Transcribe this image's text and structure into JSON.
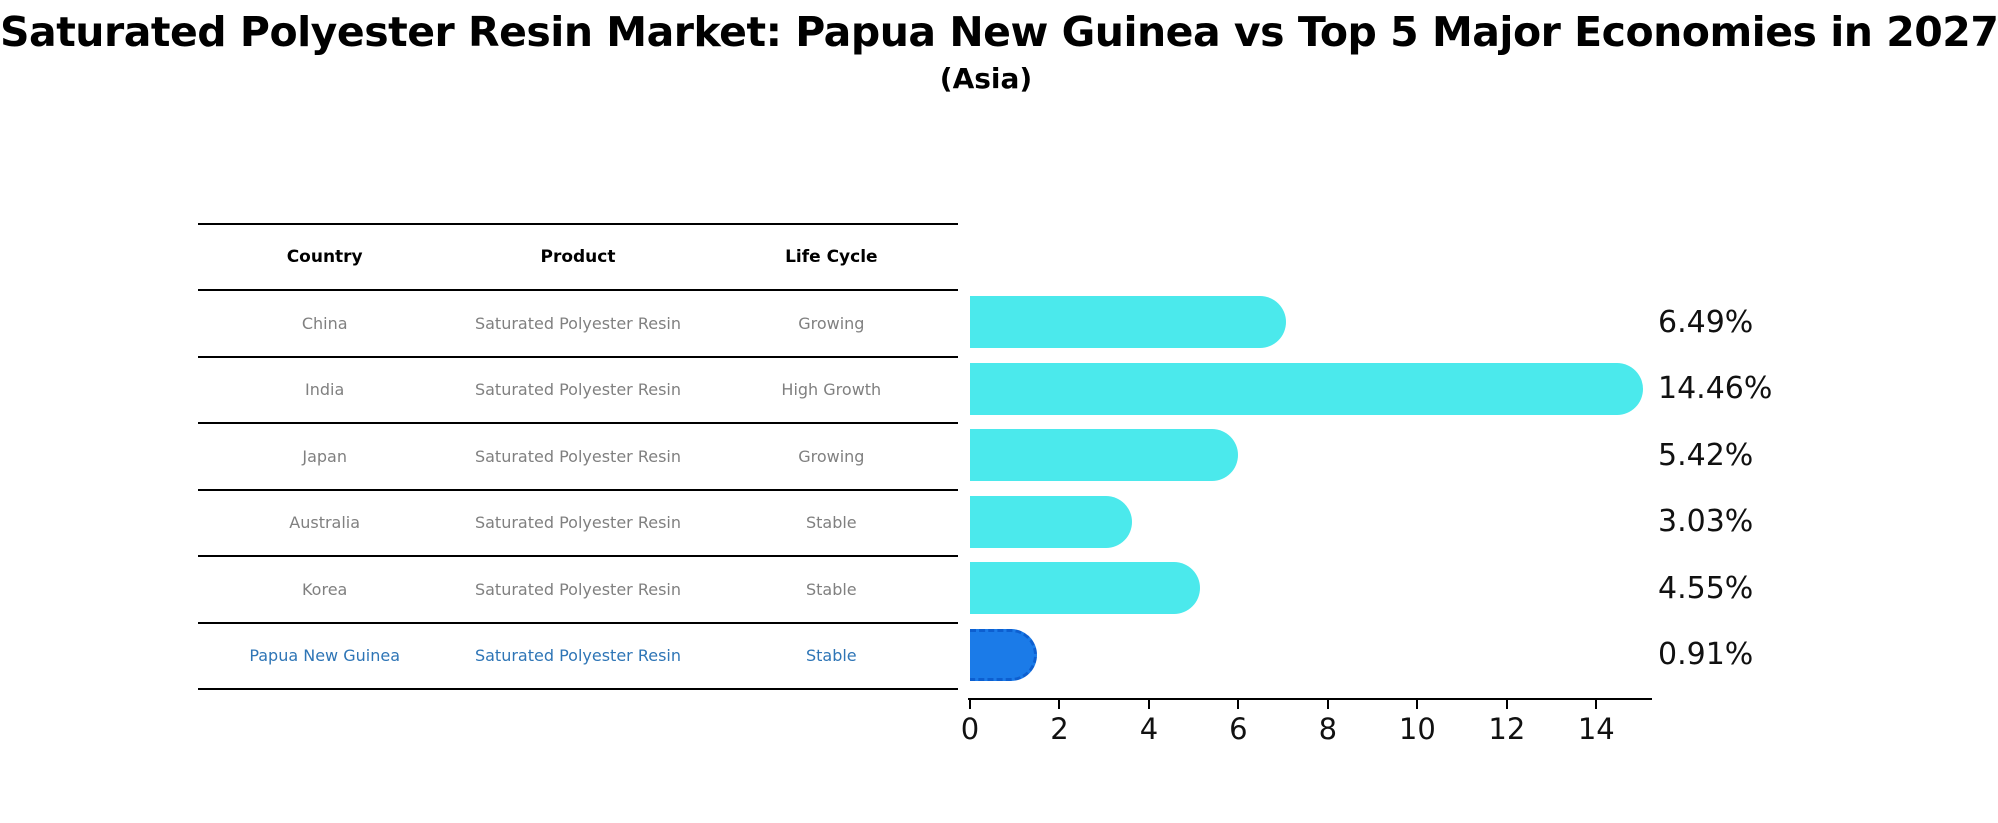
{
  "title": "Saturated Polyester Resin Market: Papua New Guinea vs Top 5 Major Economies in 2027",
  "subtitle": "(Asia)",
  "table": {
    "headers": [
      "Country",
      "Product",
      "Life Cycle"
    ],
    "rows": [
      {
        "country": "China",
        "product": "Saturated Polyester Resin",
        "life_cycle": "Growing",
        "highlight": false
      },
      {
        "country": "India",
        "product": "Saturated Polyester Resin",
        "life_cycle": "High Growth",
        "highlight": false
      },
      {
        "country": "Japan",
        "product": "Saturated Polyester Resin",
        "life_cycle": "Growing",
        "highlight": false
      },
      {
        "country": "Australia",
        "product": "Saturated Polyester Resin",
        "life_cycle": "Stable",
        "highlight": false
      },
      {
        "country": "Korea",
        "product": "Saturated Polyester Resin",
        "life_cycle": "Stable",
        "highlight": false
      },
      {
        "country": "Papua New Guinea",
        "product": "Saturated Polyester Resin",
        "life_cycle": "Stable",
        "highlight": true
      }
    ]
  },
  "chart_data": {
    "type": "bar",
    "orientation": "horizontal",
    "title": "Saturated Polyester Resin Market: Papua New Guinea vs Top 5 Major Economies in 2027 (Asia)",
    "categories": [
      "China",
      "India",
      "Japan",
      "Australia",
      "Korea",
      "Papua New Guinea"
    ],
    "values": [
      6.49,
      14.46,
      5.42,
      3.03,
      4.55,
      0.91
    ],
    "value_labels": [
      "6.49%",
      "14.46%",
      "5.42%",
      "3.03%",
      "4.55%",
      "0.91%"
    ],
    "highlight_index": 5,
    "xlim": [
      0,
      15.2
    ],
    "x_ticks": [
      0,
      2,
      4,
      6,
      8,
      10,
      12,
      14
    ],
    "grid": false,
    "legend": "none"
  },
  "colors": {
    "bar": "#4BE9EC",
    "highlight_bar": "#1B7BE8",
    "highlight_bar_edge": "#0D5FD0",
    "highlight_text": "#2E75B6",
    "table_text": "#808080",
    "axis_text": "#111111"
  }
}
